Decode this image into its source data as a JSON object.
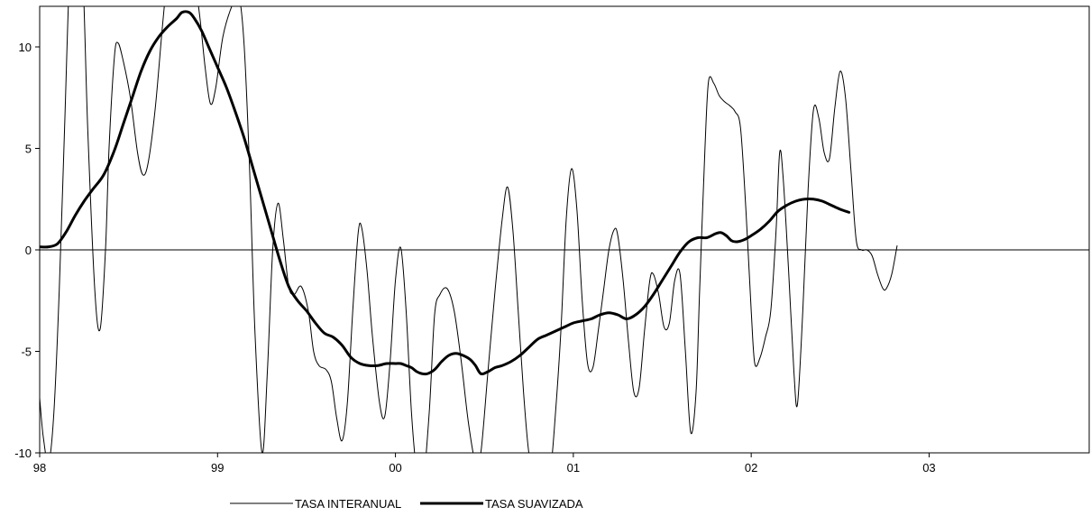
{
  "chart_data": {
    "type": "line",
    "title": "",
    "xlabel": "",
    "ylabel": "",
    "xlim": [
      1998,
      2003.9
    ],
    "ylim": [
      -10,
      12
    ],
    "x_ticks": [
      {
        "value": 1998,
        "label": "98"
      },
      {
        "value": 1999,
        "label": "99"
      },
      {
        "value": 2000,
        "label": "00"
      },
      {
        "value": 2001,
        "label": "01"
      },
      {
        "value": 2002,
        "label": "02"
      },
      {
        "value": 2003,
        "label": "03"
      }
    ],
    "y_ticks": [
      {
        "value": 10,
        "label": "10"
      },
      {
        "value": 5,
        "label": "5"
      },
      {
        "value": 0,
        "label": "0"
      },
      {
        "value": -5,
        "label": "-5"
      },
      {
        "value": -10,
        "label": "-10"
      }
    ],
    "zero_line": true,
    "grid": false,
    "legend_position": "bottom",
    "series": [
      {
        "name": "TASA INTERANUAL",
        "color": "#000000",
        "style": "thin",
        "points": [
          [
            1998.0,
            -7.3
          ],
          [
            1998.02,
            -9.2
          ],
          [
            1998.05,
            -10.5
          ],
          [
            1998.08,
            -8
          ],
          [
            1998.11,
            -2
          ],
          [
            1998.14,
            6
          ],
          [
            1998.17,
            14
          ],
          [
            1998.2,
            16
          ],
          [
            1998.24,
            14
          ],
          [
            1998.27,
            6
          ],
          [
            1998.31,
            -2
          ],
          [
            1998.34,
            -3.9
          ],
          [
            1998.37,
            0
          ],
          [
            1998.39,
            5
          ],
          [
            1998.42,
            9.5
          ],
          [
            1998.44,
            10.2
          ],
          [
            1998.47,
            9.3
          ],
          [
            1998.51,
            7.5
          ],
          [
            1998.55,
            4.8
          ],
          [
            1998.58,
            3.7
          ],
          [
            1998.61,
            4.3
          ],
          [
            1998.65,
            7
          ],
          [
            1998.69,
            11
          ],
          [
            1998.72,
            13.5
          ],
          [
            1998.76,
            15
          ],
          [
            1998.81,
            15.5
          ],
          [
            1998.86,
            14
          ],
          [
            1998.9,
            11.5
          ],
          [
            1998.93,
            9
          ],
          [
            1998.96,
            7.2
          ],
          [
            1998.99,
            8
          ],
          [
            1999.03,
            10.5
          ],
          [
            1999.08,
            12
          ],
          [
            1999.12,
            12.5
          ],
          [
            1999.15,
            10
          ],
          [
            1999.18,
            4
          ],
          [
            1999.21,
            -4
          ],
          [
            1999.25,
            -10
          ],
          [
            1999.28,
            -6
          ],
          [
            1999.31,
            0
          ],
          [
            1999.34,
            2.3
          ],
          [
            1999.37,
            0.5
          ],
          [
            1999.4,
            -1.8
          ],
          [
            1999.43,
            -2.2
          ],
          [
            1999.47,
            -1.8
          ],
          [
            1999.51,
            -3
          ],
          [
            1999.54,
            -5
          ],
          [
            1999.57,
            -5.7
          ],
          [
            1999.61,
            -5.9
          ],
          [
            1999.64,
            -6.5
          ],
          [
            1999.67,
            -8.3
          ],
          [
            1999.7,
            -9.4
          ],
          [
            1999.73,
            -7.5
          ],
          [
            1999.76,
            -3
          ],
          [
            1999.79,
            0.8
          ],
          [
            1999.81,
            1.1
          ],
          [
            1999.84,
            -1
          ],
          [
            1999.87,
            -4.2
          ],
          [
            1999.91,
            -7.5
          ],
          [
            1999.94,
            -8.2
          ],
          [
            1999.97,
            -5.5
          ],
          [
            2000.0,
            -1.5
          ],
          [
            2000.03,
            0.1
          ],
          [
            2000.06,
            -3
          ],
          [
            2000.09,
            -8
          ],
          [
            2000.12,
            -11
          ],
          [
            2000.15,
            -12
          ],
          [
            2000.19,
            -8
          ],
          [
            2000.22,
            -3.2
          ],
          [
            2000.25,
            -2.2
          ],
          [
            2000.29,
            -1.9
          ],
          [
            2000.33,
            -3
          ],
          [
            2000.37,
            -5.5
          ],
          [
            2000.41,
            -8.5
          ],
          [
            2000.45,
            -10.5
          ],
          [
            2000.48,
            -10
          ],
          [
            2000.52,
            -6
          ],
          [
            2000.56,
            -2
          ],
          [
            2000.6,
            1.5
          ],
          [
            2000.63,
            3.1
          ],
          [
            2000.66,
            1
          ],
          [
            2000.69,
            -3
          ],
          [
            2000.72,
            -7
          ],
          [
            2000.75,
            -10
          ],
          [
            2000.79,
            -11.5
          ],
          [
            2000.83,
            -12
          ],
          [
            2000.87,
            -11
          ],
          [
            2000.9,
            -8
          ],
          [
            2000.93,
            -4
          ],
          [
            2000.96,
            1.5
          ],
          [
            2000.99,
            4
          ],
          [
            2001.02,
            2
          ],
          [
            2001.05,
            -2.5
          ],
          [
            2001.08,
            -5.6
          ],
          [
            2001.11,
            -5.8
          ],
          [
            2001.14,
            -4
          ],
          [
            2001.17,
            -2
          ],
          [
            2001.2,
            0
          ],
          [
            2001.23,
            1
          ],
          [
            2001.25,
            0.7
          ],
          [
            2001.28,
            -1.5
          ],
          [
            2001.31,
            -4.5
          ],
          [
            2001.34,
            -7
          ],
          [
            2001.37,
            -6.8
          ],
          [
            2001.4,
            -4
          ],
          [
            2001.43,
            -1.5
          ],
          [
            2001.45,
            -1.2
          ],
          [
            2001.48,
            -2.2
          ],
          [
            2001.51,
            -3.8
          ],
          [
            2001.54,
            -3.6
          ],
          [
            2001.57,
            -1.5
          ],
          [
            2001.6,
            -1.2
          ],
          [
            2001.63,
            -5
          ],
          [
            2001.66,
            -9
          ],
          [
            2001.69,
            -7
          ],
          [
            2001.71,
            -2
          ],
          [
            2001.74,
            5
          ],
          [
            2001.76,
            8.3
          ],
          [
            2001.79,
            8.2
          ],
          [
            2001.82,
            7.6
          ],
          [
            2001.85,
            7.3
          ],
          [
            2001.88,
            7.1
          ],
          [
            2001.91,
            6.8
          ],
          [
            2001.94,
            6
          ],
          [
            2001.97,
            2
          ],
          [
            2002.0,
            -3
          ],
          [
            2002.02,
            -5.6
          ],
          [
            2002.05,
            -5.3
          ],
          [
            2002.08,
            -4.3
          ],
          [
            2002.11,
            -3
          ],
          [
            2002.14,
            1
          ],
          [
            2002.16,
            4.8
          ],
          [
            2002.18,
            3.5
          ],
          [
            2002.21,
            -1
          ],
          [
            2002.24,
            -6
          ],
          [
            2002.26,
            -7.6
          ],
          [
            2002.29,
            -3
          ],
          [
            2002.32,
            3
          ],
          [
            2002.35,
            6.9
          ],
          [
            2002.38,
            6.5
          ],
          [
            2002.41,
            4.8
          ],
          [
            2002.44,
            4.5
          ],
          [
            2002.47,
            7
          ],
          [
            2002.5,
            8.8
          ],
          [
            2002.53,
            7.5
          ],
          [
            2002.56,
            4
          ],
          [
            2002.59,
            0.5
          ],
          [
            2002.62,
            0
          ],
          [
            2002.65,
            0
          ],
          [
            2002.68,
            -0.3
          ],
          [
            2002.71,
            -1.2
          ],
          [
            2002.74,
            -1.9
          ],
          [
            2002.76,
            -1.9
          ],
          [
            2002.79,
            -1.2
          ],
          [
            2002.82,
            0.2
          ]
        ]
      },
      {
        "name": "TASA SUAVIZADA",
        "color": "#000000",
        "style": "thick",
        "points": [
          [
            1998.0,
            0.15
          ],
          [
            1998.05,
            0.15
          ],
          [
            1998.1,
            0.3
          ],
          [
            1998.15,
            0.9
          ],
          [
            1998.2,
            1.7
          ],
          [
            1998.25,
            2.4
          ],
          [
            1998.3,
            3
          ],
          [
            1998.36,
            3.7
          ],
          [
            1998.42,
            4.9
          ],
          [
            1998.47,
            6.2
          ],
          [
            1998.52,
            7.5
          ],
          [
            1998.57,
            8.8
          ],
          [
            1998.62,
            9.8
          ],
          [
            1998.67,
            10.5
          ],
          [
            1998.72,
            11
          ],
          [
            1998.77,
            11.4
          ],
          [
            1998.8,
            11.7
          ],
          [
            1998.84,
            11.7
          ],
          [
            1998.87,
            11.4
          ],
          [
            1998.91,
            10.8
          ],
          [
            1998.95,
            10
          ],
          [
            1999.0,
            9
          ],
          [
            1999.05,
            8
          ],
          [
            1999.1,
            6.8
          ],
          [
            1999.15,
            5.5
          ],
          [
            1999.2,
            4
          ],
          [
            1999.25,
            2.5
          ],
          [
            1999.3,
            1
          ],
          [
            1999.35,
            -0.5
          ],
          [
            1999.4,
            -1.8
          ],
          [
            1999.45,
            -2.5
          ],
          [
            1999.5,
            -3
          ],
          [
            1999.55,
            -3.6
          ],
          [
            1999.6,
            -4.1
          ],
          [
            1999.65,
            -4.3
          ],
          [
            1999.7,
            -4.7
          ],
          [
            1999.75,
            -5.3
          ],
          [
            1999.8,
            -5.6
          ],
          [
            1999.85,
            -5.7
          ],
          [
            1999.9,
            -5.7
          ],
          [
            1999.95,
            -5.6
          ],
          [
            2000.0,
            -5.6
          ],
          [
            2000.03,
            -5.6
          ],
          [
            2000.06,
            -5.7
          ],
          [
            2000.09,
            -5.8
          ],
          [
            2000.12,
            -6
          ],
          [
            2000.15,
            -6.1
          ],
          [
            2000.18,
            -6.1
          ],
          [
            2000.22,
            -5.9
          ],
          [
            2000.26,
            -5.5
          ],
          [
            2000.3,
            -5.2
          ],
          [
            2000.34,
            -5.1
          ],
          [
            2000.38,
            -5.2
          ],
          [
            2000.42,
            -5.4
          ],
          [
            2000.45,
            -5.7
          ],
          [
            2000.48,
            -6.1
          ],
          [
            2000.52,
            -6.0
          ],
          [
            2000.56,
            -5.8
          ],
          [
            2000.6,
            -5.7
          ],
          [
            2000.65,
            -5.5
          ],
          [
            2000.7,
            -5.2
          ],
          [
            2000.75,
            -4.8
          ],
          [
            2000.8,
            -4.4
          ],
          [
            2000.85,
            -4.2
          ],
          [
            2000.9,
            -4
          ],
          [
            2000.95,
            -3.8
          ],
          [
            2001.0,
            -3.6
          ],
          [
            2001.05,
            -3.5
          ],
          [
            2001.1,
            -3.4
          ],
          [
            2001.15,
            -3.2
          ],
          [
            2001.2,
            -3.1
          ],
          [
            2001.25,
            -3.2
          ],
          [
            2001.3,
            -3.4
          ],
          [
            2001.35,
            -3.2
          ],
          [
            2001.4,
            -2.8
          ],
          [
            2001.45,
            -2.2
          ],
          [
            2001.5,
            -1.5
          ],
          [
            2001.55,
            -0.8
          ],
          [
            2001.6,
            -0.1
          ],
          [
            2001.65,
            0.4
          ],
          [
            2001.7,
            0.6
          ],
          [
            2001.75,
            0.6
          ],
          [
            2001.8,
            0.8
          ],
          [
            2001.83,
            0.85
          ],
          [
            2001.86,
            0.7
          ],
          [
            2001.89,
            0.45
          ],
          [
            2001.92,
            0.4
          ],
          [
            2001.96,
            0.5
          ],
          [
            2002.0,
            0.7
          ],
          [
            2002.05,
            1
          ],
          [
            2002.1,
            1.4
          ],
          [
            2002.15,
            1.9
          ],
          [
            2002.2,
            2.2
          ],
          [
            2002.25,
            2.4
          ],
          [
            2002.3,
            2.5
          ],
          [
            2002.35,
            2.5
          ],
          [
            2002.4,
            2.4
          ],
          [
            2002.45,
            2.2
          ],
          [
            2002.5,
            2.0
          ],
          [
            2002.55,
            1.85
          ]
        ]
      }
    ]
  }
}
